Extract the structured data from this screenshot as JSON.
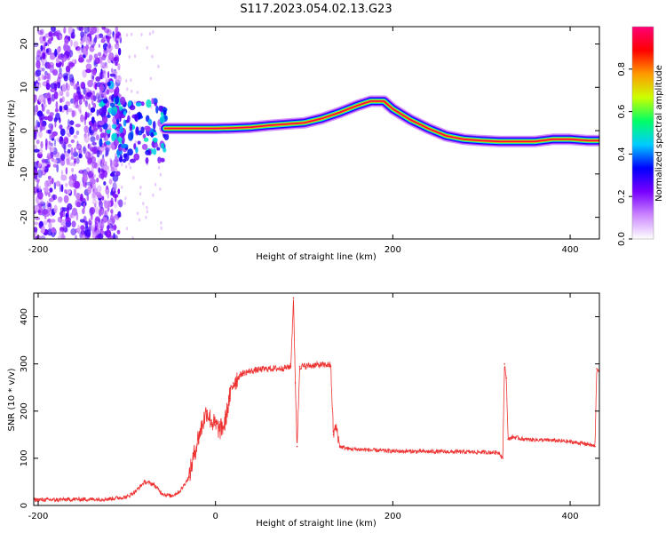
{
  "figure_title": "S117.2023.054.02.13.G23",
  "chart_data": [
    {
      "type": "heatmap",
      "title": "S117.2023.054.02.13.G23",
      "xlabel": "Height of straight line (km)",
      "ylabel": "Frequency (Hz)",
      "xlim": [
        -205,
        433
      ],
      "ylim": [
        -25,
        24
      ],
      "xticks": [
        -200,
        0,
        200,
        400
      ],
      "xtick_labels": [
        "-200",
        "0",
        "200",
        "400"
      ],
      "yticks": [
        -20,
        -10,
        0,
        10,
        20
      ],
      "ytick_labels": [
        "-20",
        "-10",
        "0",
        "10",
        "20"
      ],
      "colorbar": {
        "label": "Normalized spectral amplitude",
        "range": [
          0,
          1
        ],
        "ticks": [
          0,
          0.2,
          0.4,
          0.6,
          0.8
        ],
        "tick_labels": [
          "0.0",
          "0.2",
          "0.4",
          "0.6",
          "0.8"
        ],
        "colors": [
          "#ffffff",
          "#cc88ff",
          "#7a00ff",
          "#0000ff",
          "#00ccff",
          "#00ff66",
          "#ccff00",
          "#ff9900",
          "#ff0000",
          "#ff0077"
        ]
      },
      "ridge": {
        "name": "Doppler ridge (frequency vs height)",
        "x": [
          -57,
          -40,
          -20,
          0,
          20,
          40,
          60,
          80,
          100,
          120,
          140,
          160,
          175,
          190,
          200,
          220,
          240,
          260,
          280,
          300,
          320,
          340,
          360,
          380,
          400,
          420,
          433
        ],
        "y": [
          0.5,
          0.5,
          0.5,
          0.5,
          0.6,
          0.8,
          1.2,
          1.5,
          1.8,
          2.8,
          4.2,
          5.8,
          6.8,
          6.8,
          5.0,
          2.5,
          0.5,
          -1.2,
          -2.0,
          -2.3,
          -2.5,
          -2.5,
          -2.5,
          -2.0,
          -2.0,
          -2.3,
          -2.3
        ],
        "peak_amplitude": 0.95
      },
      "noise_region_km": [
        -205,
        -115
      ],
      "transition_region_km": [
        -130,
        -55
      ]
    },
    {
      "type": "line",
      "xlabel": "Height of straight line (km)",
      "ylabel": "SNR (10 * v/v)",
      "xlim": [
        -205,
        433
      ],
      "ylim": [
        0,
        450
      ],
      "xticks": [
        -200,
        0,
        200,
        400
      ],
      "xtick_labels": [
        "-200",
        "0",
        "200",
        "400"
      ],
      "yticks": [
        0,
        100,
        200,
        300,
        400
      ],
      "ytick_labels": [
        "0",
        "100",
        "200",
        "300",
        "400"
      ],
      "series": [
        {
          "name": "SNR",
          "color": "#ee3333",
          "x": [
            -205,
            -180,
            -160,
            -140,
            -120,
            -100,
            -90,
            -80,
            -70,
            -60,
            -50,
            -40,
            -30,
            -20,
            -10,
            -5,
            0,
            5,
            10,
            15,
            20,
            25,
            30,
            40,
            50,
            60,
            70,
            80,
            85,
            88,
            90,
            92,
            95,
            100,
            110,
            120,
            128,
            130,
            133,
            135,
            137,
            140,
            150,
            200,
            250,
            300,
            320,
            324,
            326,
            328,
            330,
            335,
            350,
            380,
            400,
            420,
            428,
            430,
            433
          ],
          "y": [
            12,
            12,
            13,
            13,
            14,
            18,
            30,
            50,
            45,
            25,
            20,
            30,
            60,
            140,
            200,
            180,
            170,
            160,
            170,
            220,
            260,
            270,
            280,
            285,
            288,
            290,
            290,
            292,
            295,
            440,
            260,
            125,
            295,
            295,
            297,
            298,
            298,
            295,
            150,
            165,
            160,
            125,
            120,
            115,
            114,
            113,
            112,
            100,
            300,
            270,
            140,
            145,
            140,
            138,
            135,
            130,
            125,
            290,
            285
          ]
        }
      ]
    }
  ]
}
